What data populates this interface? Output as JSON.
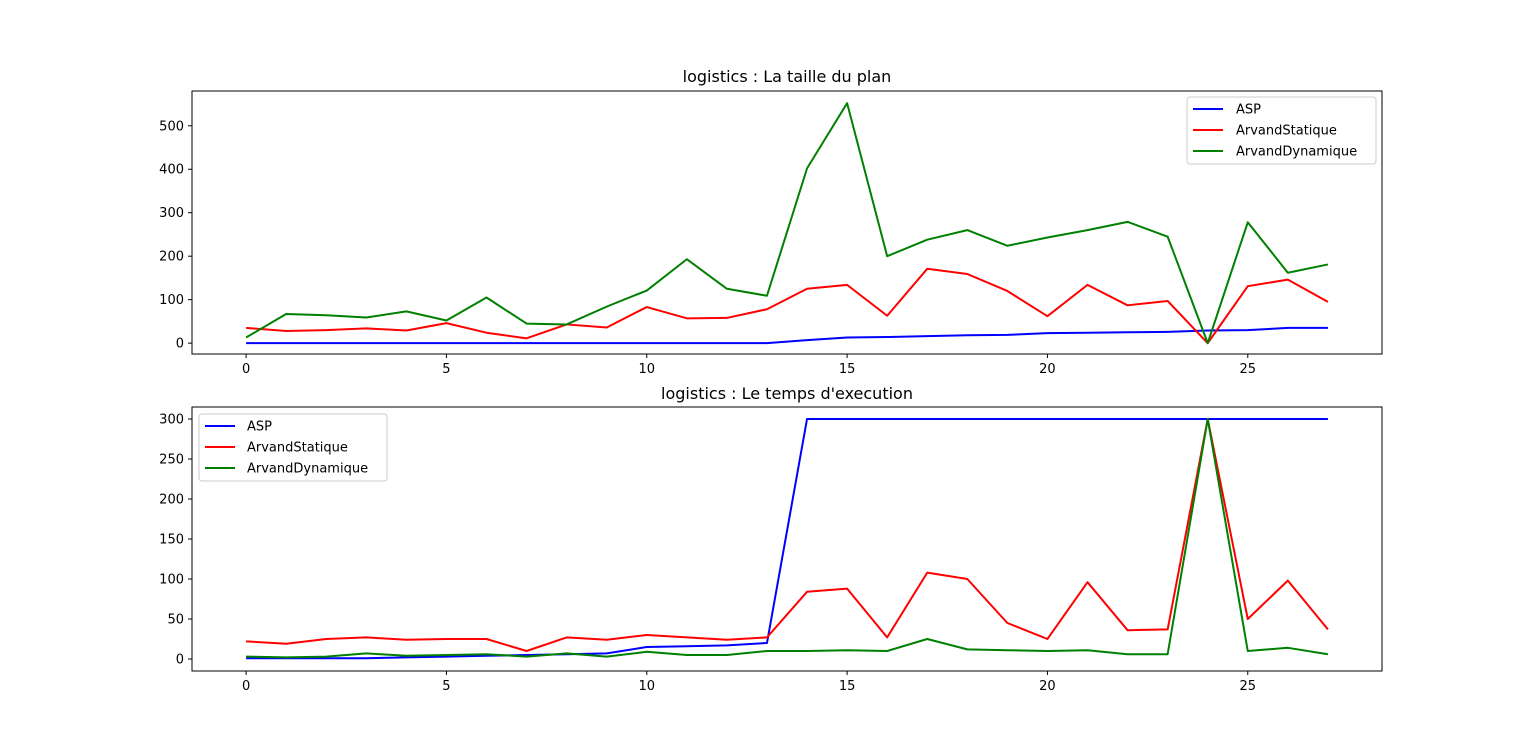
{
  "chart_data": [
    {
      "type": "line",
      "title": "logistics : La taille du plan",
      "xlabel": "",
      "ylabel": "",
      "x": [
        0,
        1,
        2,
        3,
        4,
        5,
        6,
        7,
        8,
        9,
        10,
        11,
        12,
        13,
        14,
        15,
        16,
        17,
        18,
        19,
        20,
        21,
        22,
        23,
        24,
        25,
        26,
        27
      ],
      "xlim": [
        -1.35,
        28.35
      ],
      "ylim": [
        -25,
        580
      ],
      "xticks": [
        0,
        5,
        10,
        15,
        20,
        25
      ],
      "yticks": [
        0,
        100,
        200,
        300,
        400,
        500
      ],
      "legend": "upper-right",
      "grid": false,
      "series": [
        {
          "name": "ASP",
          "color": "#0000ff",
          "values": [
            0,
            0,
            0,
            0,
            0,
            0,
            0,
            0,
            0,
            0,
            0,
            0,
            0,
            0,
            7,
            13,
            14,
            16,
            18,
            19,
            23,
            24,
            25,
            26,
            29,
            30,
            35,
            35
          ]
        },
        {
          "name": "ArvandStatique",
          "color": "#ff0000",
          "values": [
            35,
            28,
            30,
            34,
            29,
            46,
            24,
            11,
            43,
            36,
            83,
            57,
            58,
            78,
            125,
            134,
            63,
            171,
            159,
            120,
            62,
            134,
            87,
            97,
            0,
            131,
            146,
            95
          ]
        },
        {
          "name": "ArvandDynamique",
          "color": "#008000",
          "values": [
            13,
            67,
            64,
            59,
            73,
            52,
            105,
            45,
            43,
            84,
            121,
            193,
            125,
            109,
            402,
            552,
            200,
            238,
            260,
            224,
            243,
            260,
            279,
            245,
            0,
            278,
            162,
            181
          ]
        }
      ]
    },
    {
      "type": "line",
      "title": "logistics : Le temps d'execution",
      "xlabel": "",
      "ylabel": "",
      "x": [
        0,
        1,
        2,
        3,
        4,
        5,
        6,
        7,
        8,
        9,
        10,
        11,
        12,
        13,
        14,
        15,
        16,
        17,
        18,
        19,
        20,
        21,
        22,
        23,
        24,
        25,
        26,
        27
      ],
      "xlim": [
        -1.35,
        28.35
      ],
      "ylim": [
        -15,
        315
      ],
      "xticks": [
        0,
        5,
        10,
        15,
        20,
        25
      ],
      "yticks": [
        0,
        50,
        100,
        150,
        200,
        250,
        300
      ],
      "legend": "upper-left",
      "grid": false,
      "series": [
        {
          "name": "ASP",
          "color": "#0000ff",
          "values": [
            1,
            1,
            1,
            1,
            2,
            3,
            4,
            5,
            6,
            7,
            15,
            16,
            17,
            20,
            300,
            300,
            300,
            300,
            300,
            300,
            300,
            300,
            300,
            300,
            300,
            300,
            300,
            300
          ]
        },
        {
          "name": "ArvandStatique",
          "color": "#ff0000",
          "values": [
            22,
            19,
            25,
            27,
            24,
            25,
            25,
            10,
            27,
            24,
            30,
            27,
            24,
            27,
            84,
            88,
            27,
            108,
            100,
            45,
            25,
            96,
            36,
            37,
            300,
            50,
            98,
            37
          ]
        },
        {
          "name": "ArvandDynamique",
          "color": "#008000",
          "values": [
            3,
            2,
            3,
            7,
            4,
            5,
            6,
            3,
            7,
            3,
            9,
            5,
            5,
            10,
            10,
            11,
            10,
            25,
            12,
            11,
            10,
            11,
            6,
            6,
            300,
            10,
            14,
            6
          ]
        }
      ]
    }
  ]
}
